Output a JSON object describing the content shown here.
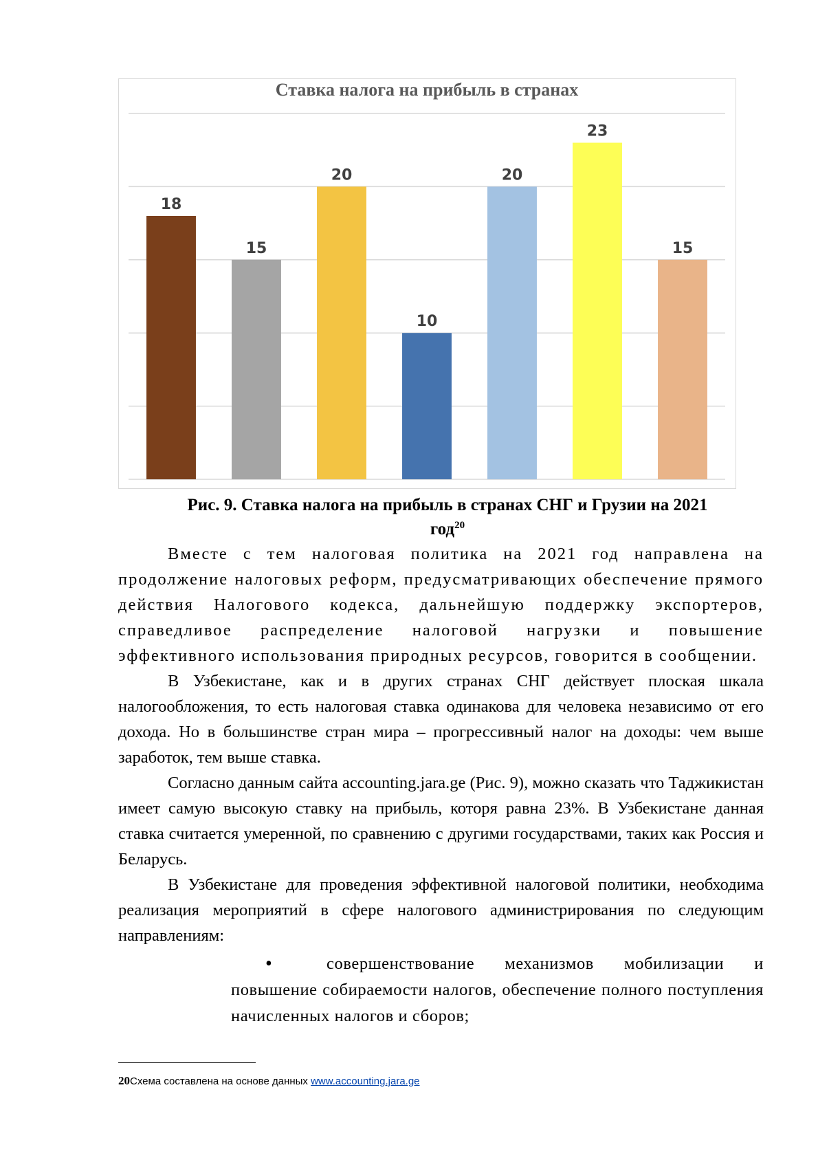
{
  "chart_data": {
    "type": "bar",
    "title": "Ставка налога на прибыль в странах",
    "categories": [
      "",
      "",
      "",
      "",
      "",
      "",
      ""
    ],
    "values": [
      18,
      15,
      20,
      10,
      20,
      23,
      15
    ],
    "colors": [
      "#7a3f1b",
      "#a5a5a5",
      "#f3c443",
      "#4573ae",
      "#a3c2e2",
      "#fdfe56",
      "#e9b489"
    ],
    "ylim": [
      0,
      25
    ],
    "gridlines": true,
    "data_labels": true,
    "legend": "none"
  },
  "caption": {
    "line1": "Рис. 9. Ставка налога на прибыль в странах СНГ и Грузии на 2021",
    "line2": "год",
    "footnote_ref": "20"
  },
  "paragraphs": [
    "Вместе с тем налоговая политика на 2021 год направлена на продолжение налоговых реформ, предусматривающих обеспечение прямого действия Налогового кодекса, дальнейшую поддержку экспортеров, справедливое распределение налоговой нагрузки и повышение эффективного использования природных ресурсов, говорится в сообщении.",
    "В Узбекистане, как и в других странах СНГ действует плоская шкала налогообложения, то есть налоговая ставка одинакова для человека независимо от его дохода. Но в большинстве стран мира – прогрессивный налог на доходы: чем выше заработок, тем выше ставка.",
    "Согласно данным сайта accounting.jara.ge (Рис. 9), можно сказать что Таджикистан имеет самую высокую ставку на прибыль, которя равна 23%. В Узбекистане данная ставка считается умеренной, по сравнению с другими государствами, таких как Россия и Беларусь.",
    "В Узбекистане для проведения эффективной налоговой политики, необходима реализация мероприятий в сфере налогового администрирования по следующим направлениям:"
  ],
  "bullet": {
    "symbol": "•",
    "text": "совершенствование механизмов мобилизации и повышение собираемости налогов, обеспечение полного поступления начисленных налогов и сборов;"
  },
  "footnote": {
    "number": "20",
    "text": "Схема составлена на основе данных ",
    "link": "www.accounting.jara.ge"
  }
}
